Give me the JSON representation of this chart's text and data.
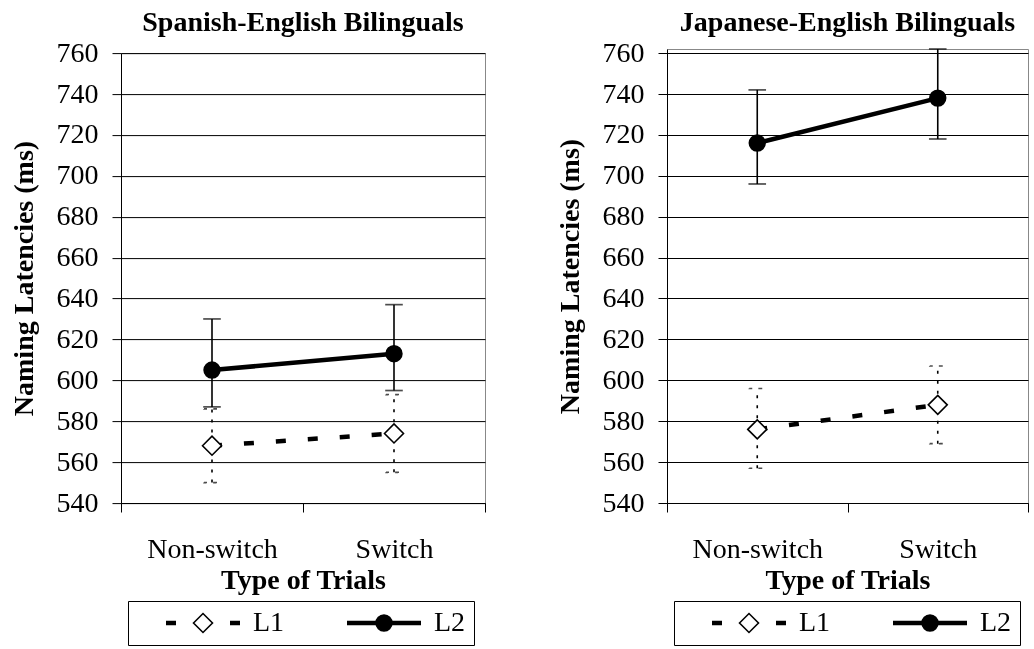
{
  "chart_data": [
    {
      "type": "line",
      "title": "Spanish-English Bilinguals",
      "xlabel": "Type of Trials",
      "ylabel": "Naming Latencies (ms)",
      "categories": [
        "Non-switch",
        "Switch"
      ],
      "series": [
        {
          "name": "L1",
          "color": "#000000",
          "marker": "diamond",
          "line_style": "dashed",
          "values": [
            568,
            574
          ],
          "errors": [
            [
              550,
              586
            ],
            [
              555,
              593
            ]
          ]
        },
        {
          "name": "L2",
          "color": "#000000",
          "marker": "circle",
          "line_style": "solid",
          "values": [
            605,
            613
          ],
          "errors": [
            [
              587,
              630
            ],
            [
              595,
              637
            ]
          ]
        }
      ],
      "ylim": [
        540,
        760
      ],
      "yticks": [
        540,
        560,
        580,
        600,
        620,
        640,
        660,
        680,
        700,
        720,
        740,
        760
      ],
      "grid": "y",
      "legend": "bottom"
    },
    {
      "type": "line",
      "title": "Japanese-English Bilinguals",
      "xlabel": "Type of Trials",
      "ylabel": "Naming Latencies (ms)",
      "categories": [
        "Non-switch",
        "Switch"
      ],
      "series": [
        {
          "name": "L1",
          "color": "#000000",
          "marker": "diamond",
          "line_style": "dashed",
          "values": [
            576,
            588
          ],
          "errors": [
            [
              557,
              596
            ],
            [
              569,
              607
            ]
          ]
        },
        {
          "name": "L2",
          "color": "#000000",
          "marker": "circle",
          "line_style": "solid",
          "values": [
            716,
            738
          ],
          "errors": [
            [
              696,
              742
            ],
            [
              718,
              762
            ]
          ]
        }
      ],
      "ylim": [
        540,
        762
      ],
      "yticks": [
        540,
        560,
        580,
        600,
        620,
        640,
        660,
        680,
        700,
        720,
        740,
        760
      ],
      "grid": "y",
      "legend": "bottom"
    }
  ]
}
